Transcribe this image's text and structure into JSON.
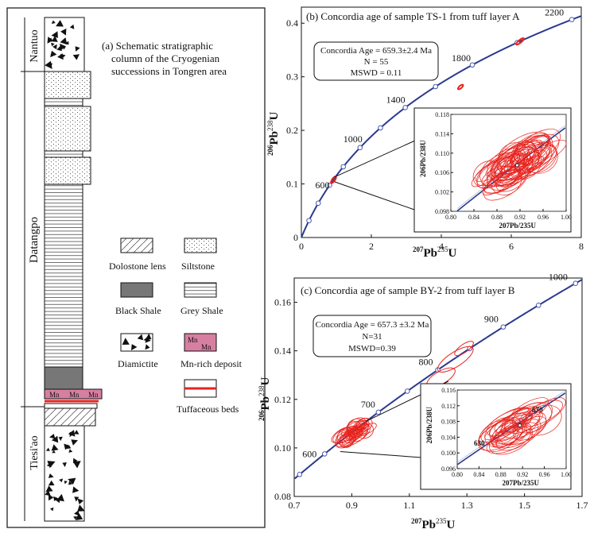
{
  "column": {
    "title": [
      "(a) Schematic stratigraphic",
      "column of the Cryogenian",
      "successions in Tongren area"
    ],
    "formations": [
      "Nantuo",
      "Datangpo",
      "Tiesi'ao"
    ],
    "mn_labels": [
      "Mn",
      "Mn",
      "Mn"
    ],
    "legend": [
      {
        "pattern": "dolostone",
        "label": "Dolostone lens"
      },
      {
        "pattern": "siltstone",
        "label": "Siltstone"
      },
      {
        "pattern": "black-shale",
        "label": "Black Shale"
      },
      {
        "pattern": "grey-shale",
        "label": "Grey Shale"
      },
      {
        "pattern": "diamictite",
        "label": "Diamictite"
      },
      {
        "pattern": "mn-deposit",
        "label": "Mn-rich deposit",
        "swatch_text": [
          "Mn",
          "Mn"
        ]
      },
      {
        "pattern": "tuff",
        "label": "Tuffaceous beds"
      }
    ],
    "colors": {
      "mn_fill": "#d77fa1",
      "black_shale": "#777777",
      "tuff": "#e8231e"
    }
  },
  "chart_data": [
    {
      "type": "scatter",
      "title": "(b) Concordia age of sample TS-1 from tuff layer A",
      "xlabel_main": "Pb",
      "xlabel_num": "207",
      "xlabel_den": "235",
      "xlabel_den_el": "U",
      "ylabel_main": "Pb",
      "ylabel_num": "206",
      "ylabel_den": "238",
      "ylabel_den_el": "U",
      "xlim": [
        0,
        8
      ],
      "ylim": [
        0,
        0.43
      ],
      "xticks": [
        "0",
        "2",
        "4",
        "6",
        "8"
      ],
      "yticks": [
        "0",
        "0.1",
        "0.2",
        "0.3",
        "0.4"
      ],
      "age_box": [
        "Concordia  Age = 659.3±2.4 Ma",
        "N = 55",
        "MSWD = 0.11"
      ],
      "concordia_ages_ma": [
        200,
        400,
        600,
        800,
        1000,
        1200,
        1400,
        1600,
        1800,
        2000,
        2200
      ],
      "age_labels": [
        {
          "age": 600,
          "text": "600"
        },
        {
          "age": 1000,
          "text": "1000"
        },
        {
          "age": 1400,
          "text": "1400"
        },
        {
          "age": 1800,
          "text": "1800"
        },
        {
          "age": 2200,
          "text": "2200"
        }
      ],
      "ellipse_clusters": [
        {
          "x": 0.92,
          "y": 0.1077,
          "n": 1
        },
        {
          "x": 6.2,
          "y": 0.366,
          "n": 1
        },
        {
          "x": 4.5,
          "y": 0.28,
          "n": 1
        }
      ],
      "inset": {
        "xlim": [
          0.8,
          1.0
        ],
        "ylim": [
          0.098,
          0.118
        ],
        "xticks": [
          "0.80",
          "0.84",
          "0.88",
          "0.92",
          "0.96",
          "1.00"
        ],
        "yticks": [
          "0.098",
          "0.102",
          "0.106",
          "0.110",
          "0.114",
          "0.118"
        ],
        "xlabel_main": "Pb",
        "xlabel_num": "207",
        "xlabel_den": "235",
        "xlabel_den_el": "U",
        "ylabel_main": "Pb",
        "ylabel_num": "206",
        "ylabel_den": "238",
        "ylabel_den_el": "U",
        "mean": {
          "x": 0.915,
          "y": 0.1075
        },
        "n_ellipses": 55
      }
    },
    {
      "type": "scatter",
      "title": "(c) Concordia age of sample BY-2 from tuff layer B",
      "xlabel_main": "Pb",
      "xlabel_num": "207",
      "xlabel_den": "235",
      "xlabel_den_el": "U",
      "ylabel_main": "Pb",
      "ylabel_num": "206",
      "ylabel_den": "238",
      "ylabel_den_el": "U",
      "xlim": [
        0.7,
        1.7
      ],
      "ylim": [
        0.08,
        0.17
      ],
      "xticks": [
        "0.7",
        "0.9",
        "1.1",
        "1.3",
        "1.5",
        "1.7"
      ],
      "yticks": [
        "0.08",
        "0.10",
        "0.12",
        "0.14",
        "0.16"
      ],
      "age_box": [
        "Concordia Age = 657.3 ±3.2 Ma",
        "N=31",
        "MSWD=0.39"
      ],
      "concordia_ages_ma": [
        550,
        600,
        650,
        700,
        750,
        800,
        850,
        900,
        950,
        1000
      ],
      "age_labels": [
        {
          "age": 600,
          "text": "600"
        },
        {
          "age": 700,
          "text": "700"
        },
        {
          "age": 800,
          "text": "800"
        },
        {
          "age": 900,
          "text": "900"
        },
        {
          "age": 1000,
          "text": "1000"
        }
      ],
      "ellipse_clusters": [
        {
          "x": 0.91,
          "y": 0.1065,
          "n": 1
        },
        {
          "x": 1.26,
          "y": 0.136,
          "n": 1
        }
      ],
      "inset": {
        "xlim": [
          0.8,
          1.0
        ],
        "ylim": [
          0.096,
          0.116
        ],
        "xticks": [
          "0.80",
          "0.84",
          "0.88",
          "0.92",
          "0.96",
          "1.00"
        ],
        "yticks": [
          "0.096",
          "0.100",
          "0.104",
          "0.108",
          "0.112",
          "0.116"
        ],
        "xlabel_main": "Pb",
        "xlabel_num": "207",
        "xlabel_den": "235",
        "xlabel_den_el": "U",
        "ylabel_main": "Pb",
        "ylabel_num": "206",
        "ylabel_den": "238",
        "ylabel_den_el": "U",
        "mean": {
          "x": 0.915,
          "y": 0.107
        },
        "n_ellipses": 31,
        "inset_age_labels": [
          {
            "age": 630,
            "text": "630"
          },
          {
            "age": 670,
            "text": "670"
          }
        ]
      }
    }
  ]
}
